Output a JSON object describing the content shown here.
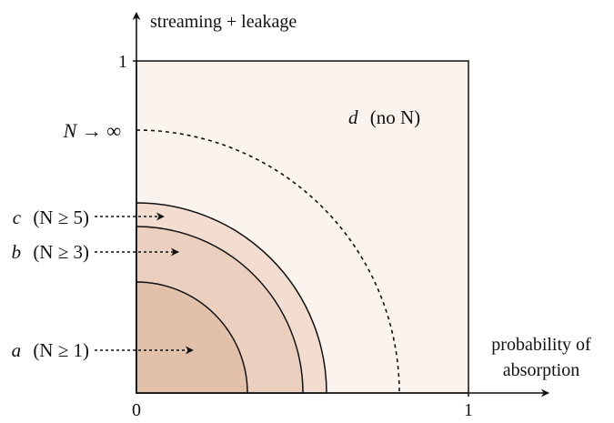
{
  "axes": {
    "y_axis_label": "streaming + leakage",
    "x_axis_label_line1": "probability of",
    "x_axis_label_line2": "absorption",
    "y_tick_one": "1",
    "x_tick_zero": "0",
    "x_tick_one": "1"
  },
  "regions": {
    "limit_label": "N → ∞",
    "d_letter": "d",
    "d_rest": "(no N)",
    "a_letter": "a",
    "a_rest": "(N ≥ 1)",
    "b_letter": "b",
    "b_rest": "(N ≥ 3)",
    "c_letter": "c",
    "c_rest": "(N ≥ 5)"
  },
  "colors": {
    "square_fill": "#faf3ee",
    "region_c_fill": "#f3ddd0",
    "region_b_fill": "#ebd0c0",
    "region_a_fill": "#e2c1ab",
    "line": "#111111"
  }
}
